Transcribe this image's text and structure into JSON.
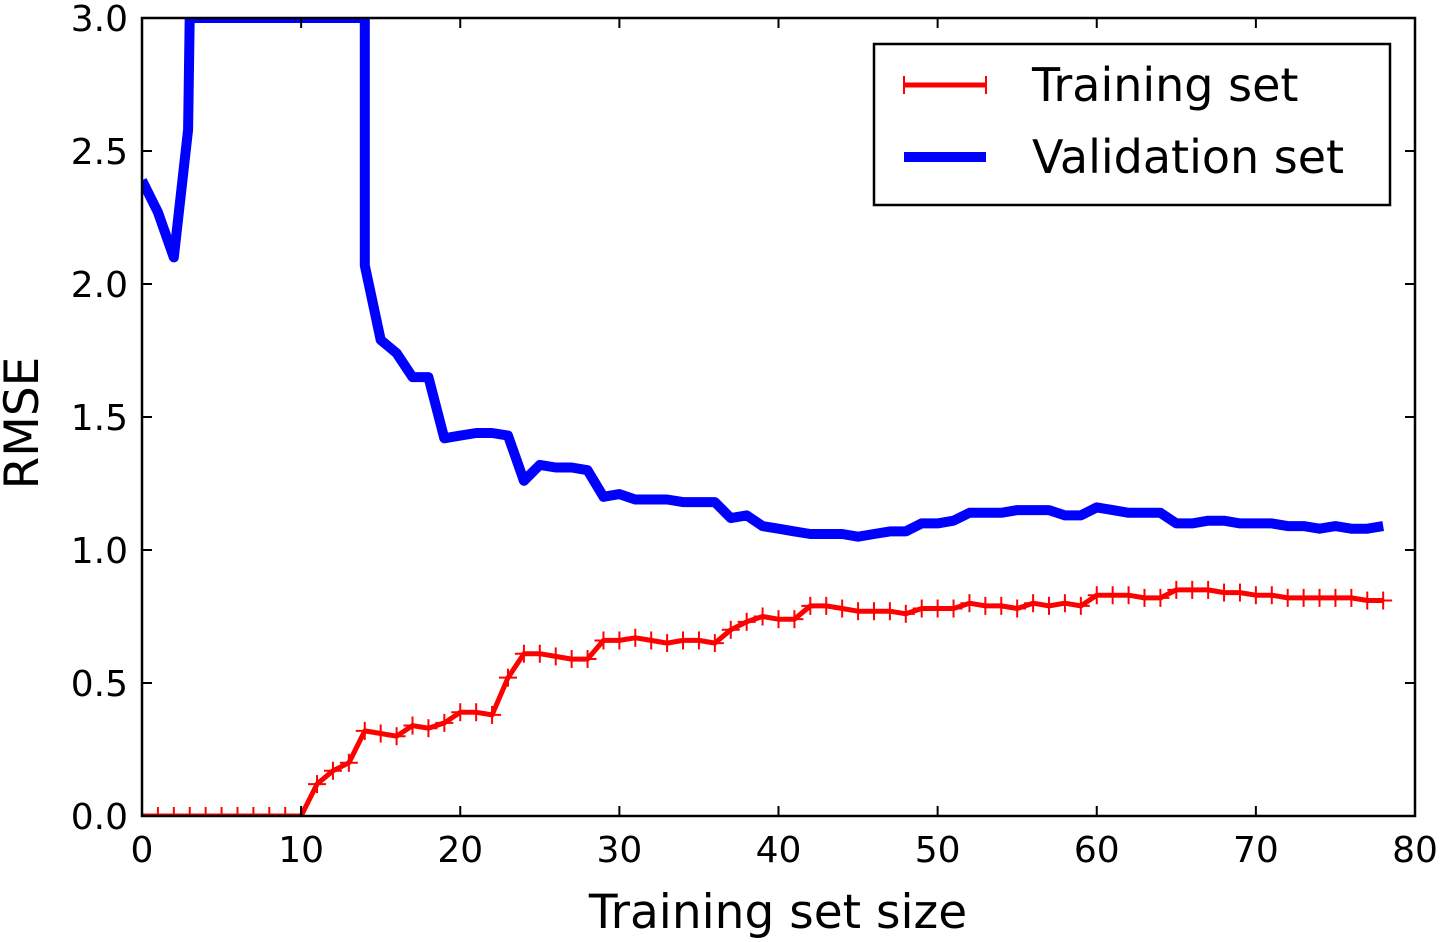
{
  "chart_data": {
    "type": "line",
    "title": "",
    "xlabel": "Training set size",
    "ylabel": "RMSE",
    "xlim": [
      0,
      80
    ],
    "ylim": [
      0,
      3.0
    ],
    "xticks": [
      "0",
      "10",
      "20",
      "30",
      "40",
      "50",
      "60",
      "70",
      "80"
    ],
    "yticks": [
      "0.0",
      "0.5",
      "1.0",
      "1.5",
      "2.0",
      "2.5",
      "3.0"
    ],
    "grid": false,
    "legend_position": "top-right",
    "series": [
      {
        "name": "Training set",
        "color": "#ff0000",
        "marker": "plus",
        "x": [
          0,
          1,
          2,
          3,
          4,
          5,
          6,
          7,
          8,
          9,
          10,
          11,
          12,
          13,
          14,
          15,
          16,
          17,
          18,
          19,
          20,
          21,
          22,
          23,
          24,
          25,
          26,
          27,
          28,
          29,
          30,
          31,
          32,
          33,
          34,
          35,
          36,
          37,
          38,
          39,
          40,
          41,
          42,
          43,
          44,
          45,
          46,
          47,
          48,
          49,
          50,
          51,
          52,
          53,
          54,
          55,
          56,
          57,
          58,
          59,
          60,
          61,
          62,
          63,
          64,
          65,
          66,
          67,
          68,
          69,
          70,
          71,
          72,
          73,
          74,
          75,
          76,
          77,
          78
        ],
        "y": [
          0,
          0,
          0,
          0,
          0,
          0,
          0,
          0,
          0,
          0,
          0,
          0.12,
          0.17,
          0.2,
          0.32,
          0.31,
          0.3,
          0.34,
          0.33,
          0.35,
          0.39,
          0.39,
          0.38,
          0.52,
          0.61,
          0.61,
          0.6,
          0.59,
          0.59,
          0.66,
          0.66,
          0.67,
          0.66,
          0.65,
          0.66,
          0.66,
          0.65,
          0.7,
          0.73,
          0.75,
          0.74,
          0.74,
          0.79,
          0.79,
          0.78,
          0.77,
          0.77,
          0.77,
          0.76,
          0.78,
          0.78,
          0.78,
          0.8,
          0.79,
          0.79,
          0.78,
          0.8,
          0.79,
          0.8,
          0.79,
          0.83,
          0.83,
          0.83,
          0.82,
          0.82,
          0.85,
          0.85,
          0.85,
          0.84,
          0.84,
          0.83,
          0.83,
          0.82,
          0.82,
          0.82,
          0.82,
          0.82,
          0.81,
          0.81
        ]
      },
      {
        "name": "Validation set",
        "color": "#0000ff",
        "marker": "none",
        "x": [
          0,
          1,
          2,
          2.9,
          3,
          14,
          14,
          15,
          16,
          17,
          18,
          19,
          20,
          21,
          22,
          23,
          24,
          25,
          26,
          27,
          28,
          29,
          30,
          31,
          32,
          33,
          34,
          35,
          36,
          37,
          38,
          39,
          40,
          41,
          42,
          43,
          44,
          45,
          46,
          47,
          48,
          49,
          50,
          51,
          52,
          53,
          54,
          55,
          56,
          57,
          58,
          59,
          60,
          61,
          62,
          63,
          64,
          65,
          66,
          67,
          68,
          69,
          70,
          71,
          72,
          73,
          74,
          75,
          76,
          77,
          78
        ],
        "y": [
          2.39,
          2.27,
          2.1,
          2.58,
          3.0,
          3.0,
          2.07,
          1.79,
          1.74,
          1.65,
          1.65,
          1.42,
          1.43,
          1.44,
          1.44,
          1.43,
          1.26,
          1.32,
          1.31,
          1.31,
          1.3,
          1.2,
          1.21,
          1.19,
          1.19,
          1.19,
          1.18,
          1.18,
          1.18,
          1.12,
          1.13,
          1.09,
          1.08,
          1.07,
          1.06,
          1.06,
          1.06,
          1.05,
          1.06,
          1.07,
          1.07,
          1.1,
          1.1,
          1.11,
          1.14,
          1.14,
          1.14,
          1.15,
          1.15,
          1.15,
          1.13,
          1.13,
          1.16,
          1.15,
          1.14,
          1.14,
          1.14,
          1.1,
          1.1,
          1.11,
          1.11,
          1.1,
          1.1,
          1.1,
          1.09,
          1.09,
          1.08,
          1.09,
          1.08,
          1.08,
          1.09
        ]
      }
    ]
  }
}
